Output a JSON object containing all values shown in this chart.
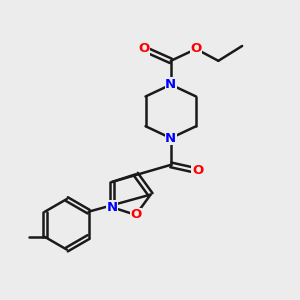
{
  "bg_color": "#ececec",
  "bond_color": "#1a1a1a",
  "n_color": "#0000ff",
  "o_color": "#ff0000",
  "line_width": 1.8,
  "font_size": 9.5,
  "xlim": [
    0,
    10
  ],
  "ylim": [
    0,
    10
  ]
}
